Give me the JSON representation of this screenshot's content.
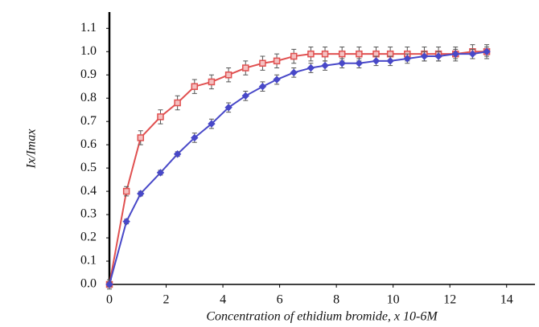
{
  "chart_data": {
    "type": "line",
    "xlabel": "Concentration of ethidium bromide, x 10-6M",
    "ylabel": "Ix/Imax",
    "x": [
      0,
      0.6,
      1.1,
      1.8,
      2.4,
      3.0,
      3.6,
      4.2,
      4.8,
      5.4,
      5.9,
      6.5,
      7.1,
      7.6,
      8.2,
      8.8,
      9.4,
      9.9,
      10.5,
      11.1,
      11.6,
      12.2,
      12.8,
      13.3
    ],
    "series": [
      {
        "color": "#e05050",
        "marker": "square",
        "values": [
          0,
          0.4,
          0.63,
          0.72,
          0.78,
          0.85,
          0.87,
          0.9,
          0.93,
          0.95,
          0.96,
          0.98,
          0.99,
          0.99,
          0.99,
          0.99,
          0.99,
          0.99,
          0.99,
          0.99,
          0.99,
          0.99,
          1.0,
          1.0
        ],
        "errors": [
          0.02,
          0.02,
          0.03,
          0.03,
          0.03,
          0.03,
          0.03,
          0.03,
          0.03,
          0.03,
          0.03,
          0.03,
          0.03,
          0.03,
          0.03,
          0.03,
          0.03,
          0.03,
          0.03,
          0.03,
          0.03,
          0.03,
          0.03,
          0.03
        ]
      },
      {
        "color": "#4848c8",
        "marker": "diamond",
        "values": [
          0,
          0.27,
          0.39,
          0.48,
          0.56,
          0.63,
          0.69,
          0.76,
          0.81,
          0.85,
          0.88,
          0.91,
          0.93,
          0.94,
          0.95,
          0.95,
          0.96,
          0.96,
          0.97,
          0.98,
          0.98,
          0.99,
          0.99,
          1.0
        ],
        "errors": [
          0.01,
          0.01,
          0.01,
          0.01,
          0.01,
          0.02,
          0.02,
          0.02,
          0.02,
          0.02,
          0.02,
          0.02,
          0.02,
          0.02,
          0.02,
          0.02,
          0.02,
          0.02,
          0.02,
          0.02,
          0.02,
          0.02,
          0.02,
          0.02
        ]
      }
    ],
    "xlim": [
      0,
      15
    ],
    "xticks": [
      0,
      2,
      4,
      6,
      8,
      10,
      12,
      14
    ],
    "ylim": [
      0,
      1.17
    ],
    "yticks": [
      {
        "value": 0,
        "label": "0.0"
      },
      0.1,
      0.2,
      0.3,
      0.4,
      0.5,
      0.6,
      0.7,
      0.8,
      0.9,
      {
        "value": 1,
        "label": "1.0"
      },
      1.1
    ],
    "grid": false
  }
}
